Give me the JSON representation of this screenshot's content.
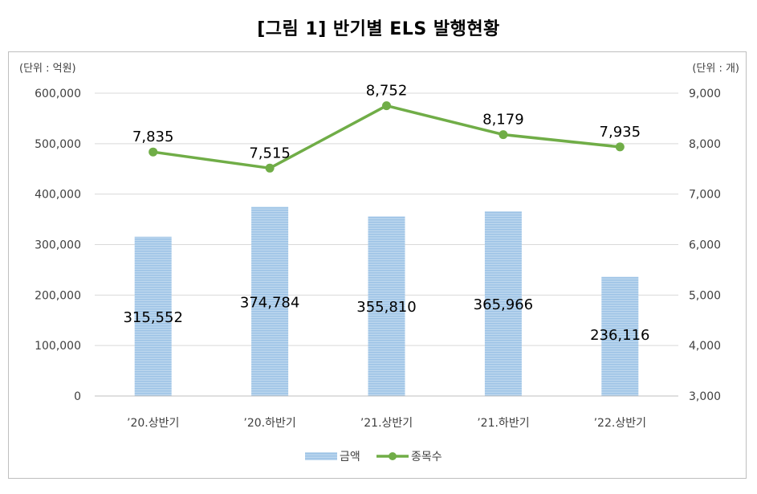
{
  "title": "[그림 1] 반기별 ELS 발행현황",
  "chart_data": {
    "type": "bar",
    "categories": [
      "’20.상반기",
      "’20.하반기",
      "’21.상반기",
      "’21.하반기",
      "’22.상반기"
    ],
    "series": [
      {
        "name": "금액",
        "type": "bar",
        "axis": "left",
        "values": [
          315552,
          374784,
          355810,
          365966,
          236116
        ],
        "labels": [
          "315,552",
          "374,784",
          "355,810",
          "365,966",
          "236,116"
        ],
        "color": "#9dc3e6"
      },
      {
        "name": "종목수",
        "type": "line",
        "axis": "right",
        "values": [
          7835,
          7515,
          8752,
          8179,
          7935
        ],
        "labels": [
          "7,835",
          "7,515",
          "8,752",
          "8,179",
          "7,935"
        ],
        "color": "#70ad47"
      }
    ],
    "y_left": {
      "unit_label": "(단위 : 억원)",
      "min": 0,
      "max": 600000,
      "ticks": [
        0,
        100000,
        200000,
        300000,
        400000,
        500000,
        600000
      ],
      "tick_labels": [
        "0",
        "100,000",
        "200,000",
        "300,000",
        "400,000",
        "500,000",
        "600,000"
      ]
    },
    "y_right": {
      "unit_label": "(단위 : 개)",
      "min": 3000,
      "max": 9000,
      "ticks": [
        3000,
        4000,
        5000,
        6000,
        7000,
        8000,
        9000
      ],
      "tick_labels": [
        "3,000",
        "4,000",
        "5,000",
        "6,000",
        "7,000",
        "8,000",
        "9,000"
      ]
    },
    "grid": true,
    "legend_position": "bottom"
  }
}
